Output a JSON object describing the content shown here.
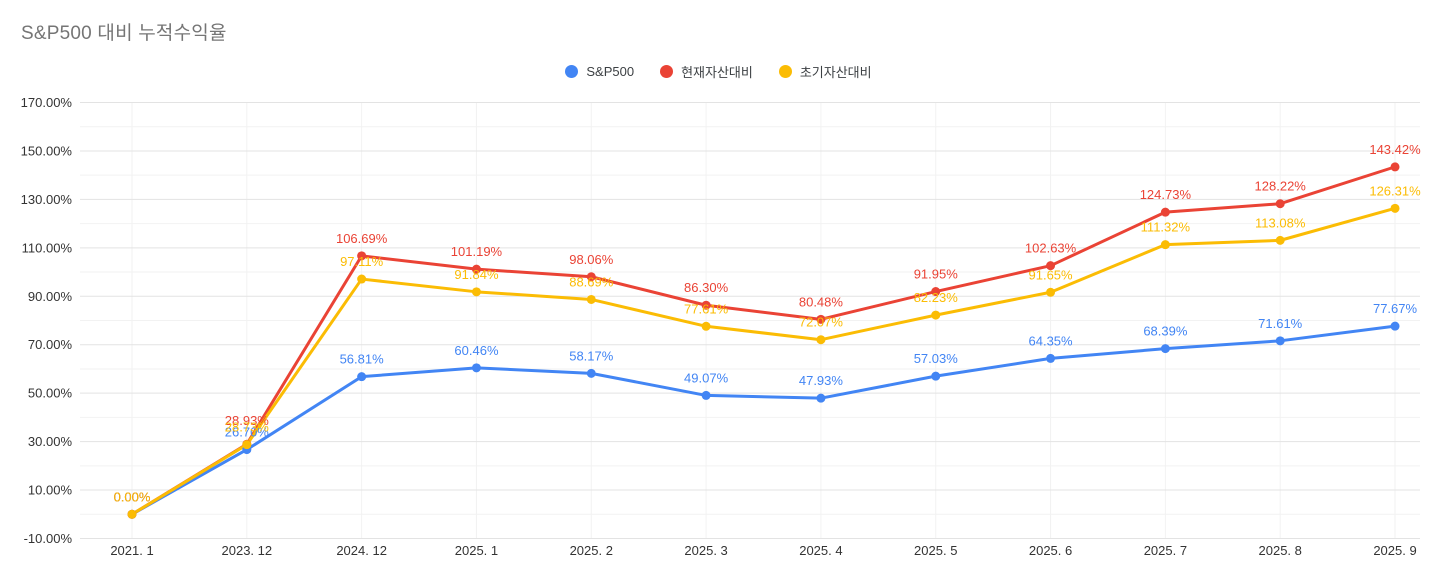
{
  "title": "S&P500 대비 누적수익율",
  "colors": {
    "background": "#ffffff",
    "title_text": "#757575",
    "axis_text": "#333333",
    "legend_text": "#3c4043",
    "grid_major": "#e3e3e3",
    "grid_minor": "#f2f2f2",
    "grid_vertical": "#f2f2f2",
    "series_blue": "#4285F4",
    "series_red": "#EA4335",
    "series_yellow": "#FBBC04"
  },
  "chart_data": {
    "type": "line",
    "title": "S&P500 대비 누적수익율",
    "xlabel": "",
    "ylabel": "",
    "legend_position": "top",
    "grid": true,
    "point_markers": true,
    "data_labels": true,
    "label_format": "0.00%",
    "ylim": [
      -10,
      170
    ],
    "y_tick_step": 20,
    "y_tick_labels": [
      "170.00%",
      "150.00%",
      "130.00%",
      "110.00%",
      "90.00%",
      "70.00%",
      "50.00%",
      "30.00%",
      "10.00%",
      "-10.00%"
    ],
    "categories": [
      "2021. 1",
      "2023. 12",
      "2024. 12",
      "2025. 1",
      "2025. 2",
      "2025. 3",
      "2025. 4",
      "2025. 5",
      "2025. 6",
      "2025. 7",
      "2025. 8",
      "2025. 9"
    ],
    "series": [
      {
        "name": "S&P500",
        "color": "#4285F4",
        "values": [
          0.0,
          26.7,
          56.81,
          60.46,
          58.17,
          49.07,
          47.93,
          57.03,
          64.35,
          68.39,
          71.61,
          77.67
        ]
      },
      {
        "name": "현재자산대비",
        "color": "#EA4335",
        "values": [
          0.0,
          28.93,
          106.69,
          101.19,
          98.06,
          86.3,
          80.48,
          91.95,
          102.63,
          124.73,
          128.22,
          143.42
        ]
      },
      {
        "name": "초기자산대비",
        "color": "#FBBC04",
        "values": [
          0.0,
          28.73,
          97.11,
          91.84,
          88.69,
          77.61,
          72.07,
          82.23,
          91.65,
          111.32,
          113.08,
          126.31
        ]
      }
    ],
    "label_offsets": [
      {
        "series": 1,
        "index": 1,
        "dy": -6
      }
    ]
  }
}
